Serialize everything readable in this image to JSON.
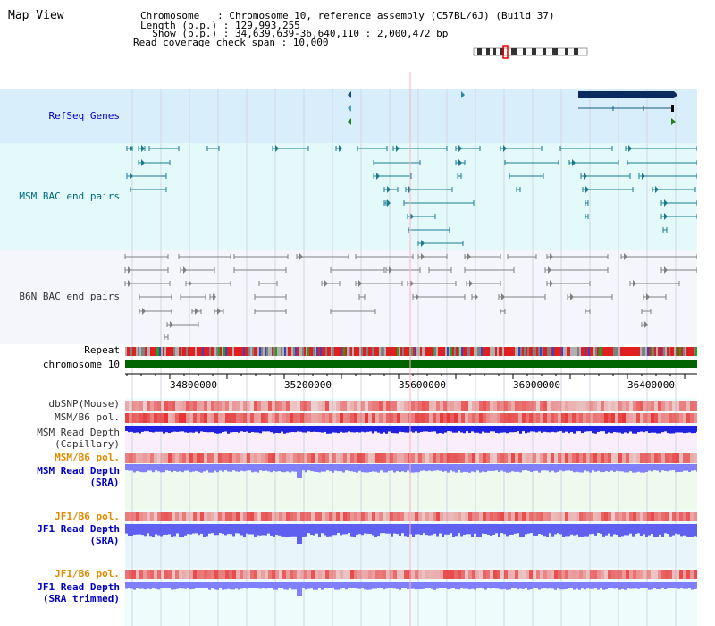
{
  "page": {
    "title": "Map View"
  },
  "info": {
    "chromosome": "Chromosome   : Chromosome 10, reference assembly (C57BL/6J) (Build 37)",
    "length": "Length (b.p.) : 129,993,255",
    "show": "  Show (b.p.) : 34,639,639-36,640,110 : 2,000,472 bp",
    "coverage": "Read coverage check span : 10,000"
  },
  "tracks": {
    "refseq": "RefSeq Genes",
    "msm_bac": "MSM BAC end pairs",
    "b6n_bac": "B6N BAC end pairs",
    "repeat": "Repeat",
    "chromosome": "chromosome 10",
    "dbsnp": "dbSNP(Mouse)",
    "msm_pol1": "MSM/B6 pol.",
    "msm_depth_cap_1": "MSM Read Depth",
    "msm_depth_cap_2": "(Capillary)",
    "msm_pol2": "MSM/B6 pol.",
    "msm_depth_sra_1": "MSM Read Depth",
    "msm_depth_sra_2": "(SRA)",
    "jf1_pol1": "JF1/B6 pol.",
    "jf1_depth_sra_1": "JF1 Read Depth",
    "jf1_depth_sra_2": "(SRA)",
    "jf1_pol2": "JF1/B6 pol.",
    "jf1_depth_trim_1": "JF1 Read Depth",
    "jf1_depth_trim_2": "(SRA trimmed)"
  },
  "axis": {
    "ticks": [
      "34800000",
      "35200000",
      "35600000",
      "36000000",
      "36400000"
    ]
  },
  "colors": {
    "refseq_bg": "#d8eefa",
    "msm_bg": "#e4fafa",
    "b6n_bg": "#f4f6fb",
    "label_blue": "#0000c0",
    "label_teal": "#006a80",
    "label_gray": "#333333",
    "label_orange": "#e08a00",
    "msm_feature": "#1a7a90",
    "b6n_feature": "#808080",
    "gene_dark": "#0a2a60",
    "chrom_green": "#006400"
  }
}
